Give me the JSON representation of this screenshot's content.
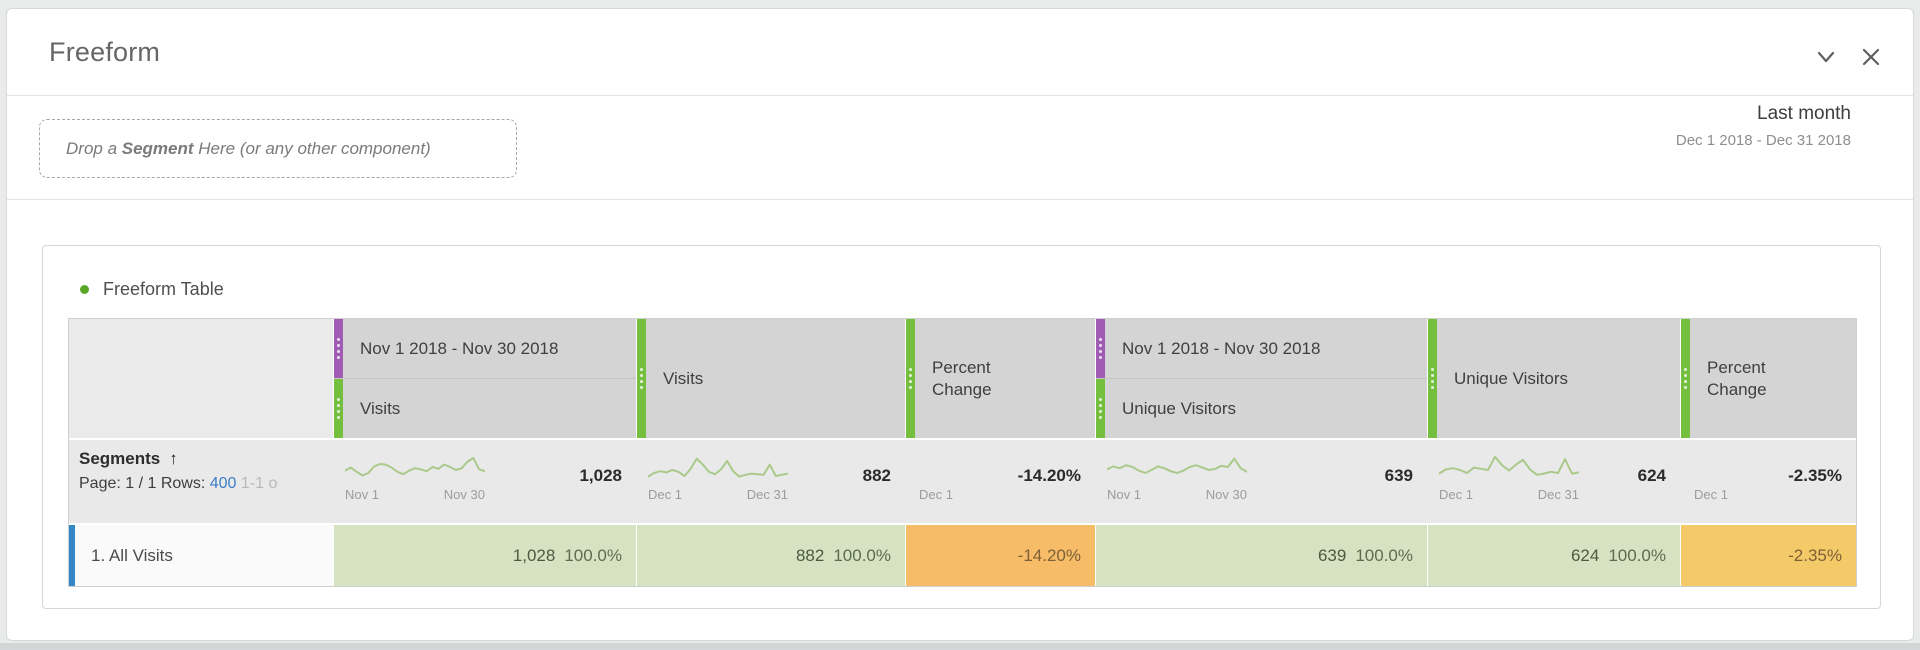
{
  "panel": {
    "title": "Freeform"
  },
  "icons": {
    "collapse": "chevron-down",
    "close": "x",
    "sort": "arrow-up",
    "card_bullet": "green-dot",
    "drag_handle": "dotted-grip"
  },
  "colors": {
    "accent_green": "#74bf3d",
    "accent_purple": "#a05cb4",
    "positive_cell": "#d5e3c2",
    "negative_cell": "#f6bc68",
    "negative_mild_cell": "#f4ca69",
    "selected_row_stripe": "#3488c8",
    "link_blue": "#3d7dc8",
    "sparkline": "#abc98b"
  },
  "dropzone": {
    "prefix": "Drop a ",
    "bold": "Segment",
    "suffix": " Here (or any other component)"
  },
  "daterange": {
    "label": "Last month",
    "range": "Dec 1 2018 - Dec 31 2018"
  },
  "card": {
    "title": "Freeform Table"
  },
  "table": {
    "columns": [
      {
        "type": "row-header"
      },
      {
        "type": "stacked",
        "group": "Nov 1 2018 - Nov 30 2018",
        "metric": "Visits"
      },
      {
        "type": "metric",
        "metric": "Visits"
      },
      {
        "type": "metric",
        "metric": "Percent Change"
      },
      {
        "type": "stacked",
        "group": "Nov 1 2018 - Nov 30 2018",
        "metric": "Unique Visitors"
      },
      {
        "type": "metric",
        "metric": "Unique Visitors"
      },
      {
        "type": "metric",
        "metric": "Percent Change"
      }
    ],
    "segments_row": {
      "title": "Segments",
      "pagination": {
        "page": "Page: 1 / 1",
        "rows_label": " Rows: ",
        "rows_value": "400",
        "range": " 1-1 o"
      },
      "cells": [
        {
          "start": "Nov 1",
          "end": "Nov 30",
          "total": "1,028"
        },
        {
          "start": "Dec 1",
          "end": "Dec 31",
          "total": "882"
        },
        {
          "label": "Dec 1",
          "total": "-14.20%"
        },
        {
          "start": "Nov 1",
          "end": "Nov 30",
          "total": "639"
        },
        {
          "start": "Dec 1",
          "end": "Dec 31",
          "total": "624"
        },
        {
          "label": "Dec 1",
          "total": "-2.35%"
        }
      ]
    },
    "rows": [
      {
        "label": "1. All Visits",
        "cells": [
          {
            "value": "1,028",
            "share": "100.0%"
          },
          {
            "value": "882",
            "share": "100.0%"
          },
          {
            "value": "-14.20%"
          },
          {
            "value": "639",
            "share": "100.0%"
          },
          {
            "value": "624",
            "share": "100.0%"
          },
          {
            "value": "-2.35%"
          }
        ]
      }
    ]
  },
  "chart_data": {
    "type": "line",
    "note": "four inline sparklines in the segments summary row",
    "sparklines": {
      "nov_visits": [
        38,
        48,
        34,
        22,
        30,
        52,
        60,
        58,
        48,
        34,
        26,
        38,
        46,
        42,
        36,
        50,
        44,
        58,
        50,
        40,
        46,
        68,
        80,
        42,
        36
      ],
      "dec_visits": [
        18,
        30,
        36,
        32,
        40,
        34,
        20,
        44,
        78,
        58,
        34,
        26,
        42,
        70,
        36,
        18,
        24,
        28,
        26,
        24,
        58,
        20,
        24,
        28
      ],
      "nov_unique_visitors": [
        42,
        52,
        46,
        56,
        50,
        38,
        30,
        40,
        52,
        46,
        36,
        30,
        38,
        50,
        56,
        48,
        40,
        44,
        54,
        50,
        78,
        46,
        34
      ],
      "dec_unique_visitors": [
        28,
        42,
        46,
        40,
        30,
        48,
        44,
        40,
        84,
        56,
        38,
        58,
        74,
        42,
        24,
        28,
        34,
        30,
        76,
        28,
        32
      ]
    },
    "totals": {
      "nov_visits": 1028,
      "dec_visits": 882,
      "visits_pct_change": -14.2,
      "nov_unique_visitors": 639,
      "dec_unique_visitors": 624,
      "uv_pct_change": -2.35
    }
  }
}
